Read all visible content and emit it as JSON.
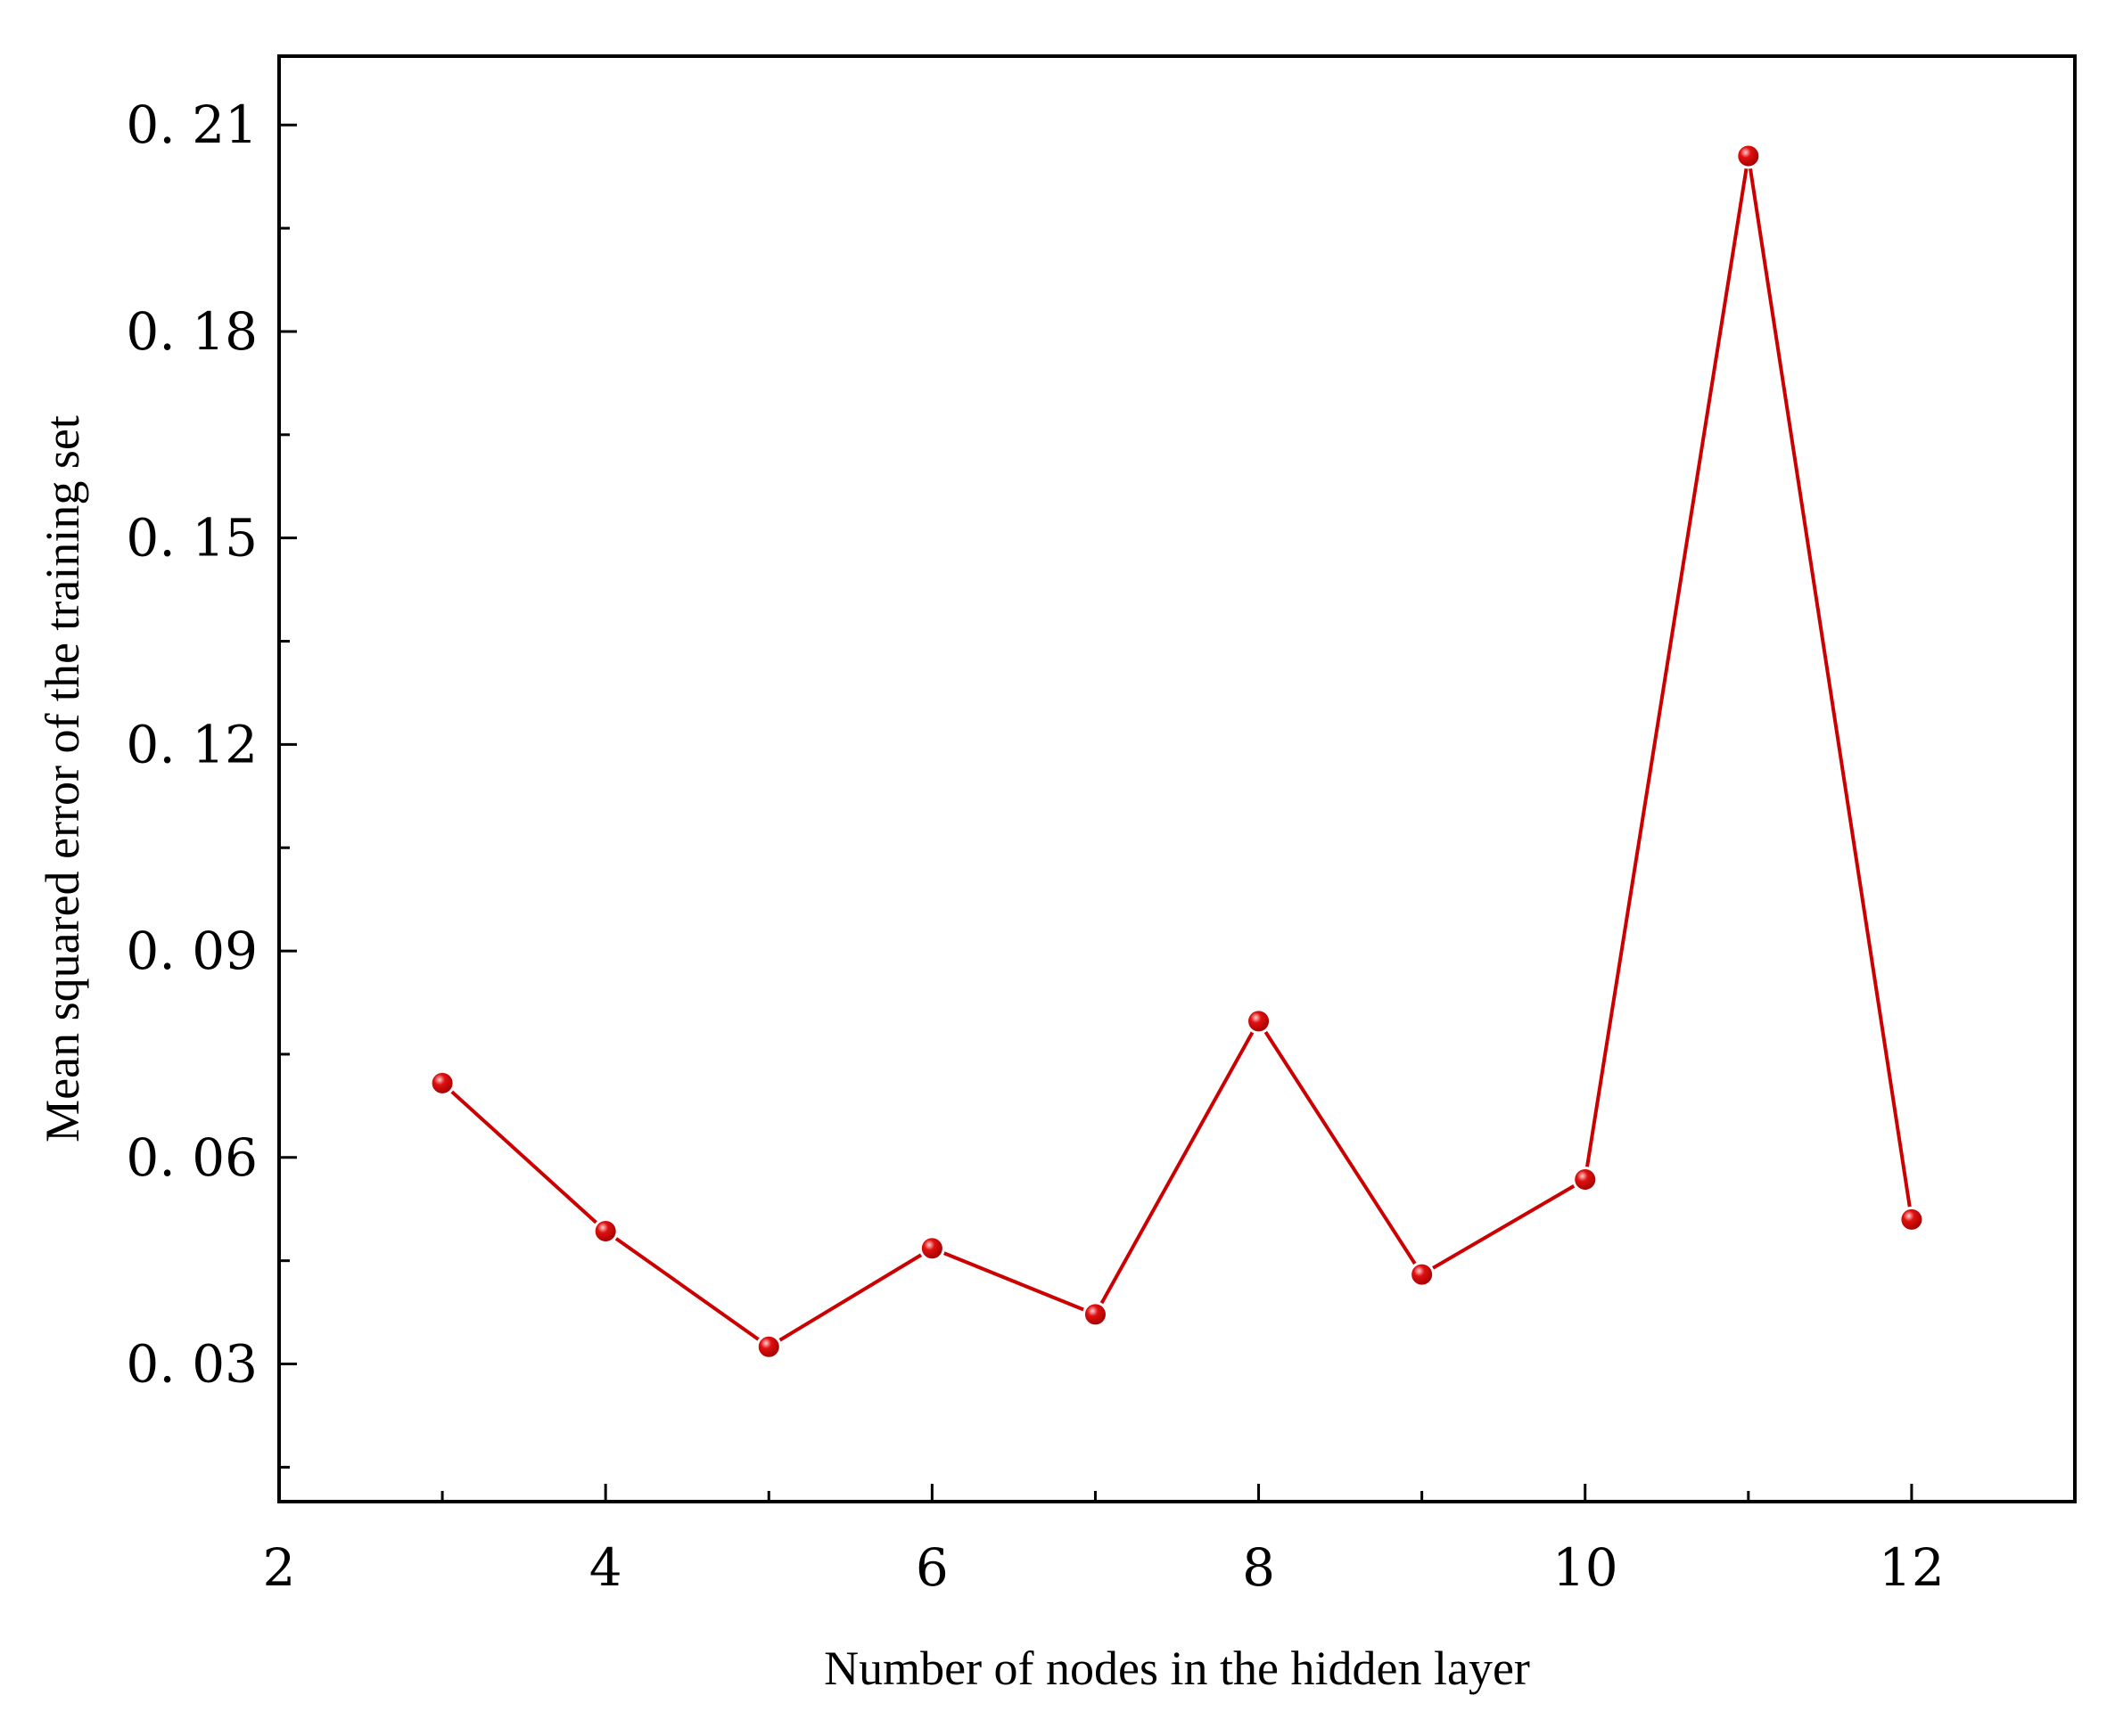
{
  "chart_data": {
    "type": "line",
    "title": "",
    "xlabel": "Number of nodes in the hidden layer",
    "ylabel": "Mean squared error of the training set",
    "xlim": [
      2,
      13
    ],
    "ylim": [
      0.01,
      0.22
    ],
    "x_major_ticks": [
      2,
      4,
      6,
      8,
      10,
      12
    ],
    "x_minor_ticks": [
      3,
      5,
      7,
      9,
      11
    ],
    "x_tick_labels": [
      "2",
      "4",
      "6",
      "8",
      "10",
      "12"
    ],
    "y_major_ticks": [
      0.03,
      0.06,
      0.09,
      0.12,
      0.15,
      0.18,
      0.21
    ],
    "y_minor_ticks": [
      0.015,
      0.045,
      0.075,
      0.105,
      0.135,
      0.165,
      0.195
    ],
    "y_tick_labels": [
      "0. 03",
      "0. 06",
      "0. 09",
      "0. 12",
      "0. 15",
      "0. 18",
      "0. 21"
    ],
    "grid": false,
    "series": [
      {
        "color": "#cc0000",
        "x": [
          3,
          4,
          5,
          6,
          7,
          8,
          9,
          10,
          11,
          12
        ],
        "y": [
          0.0708,
          0.0493,
          0.0325,
          0.0468,
          0.0372,
          0.0798,
          0.043,
          0.0568,
          0.2055,
          0.051
        ]
      }
    ]
  }
}
